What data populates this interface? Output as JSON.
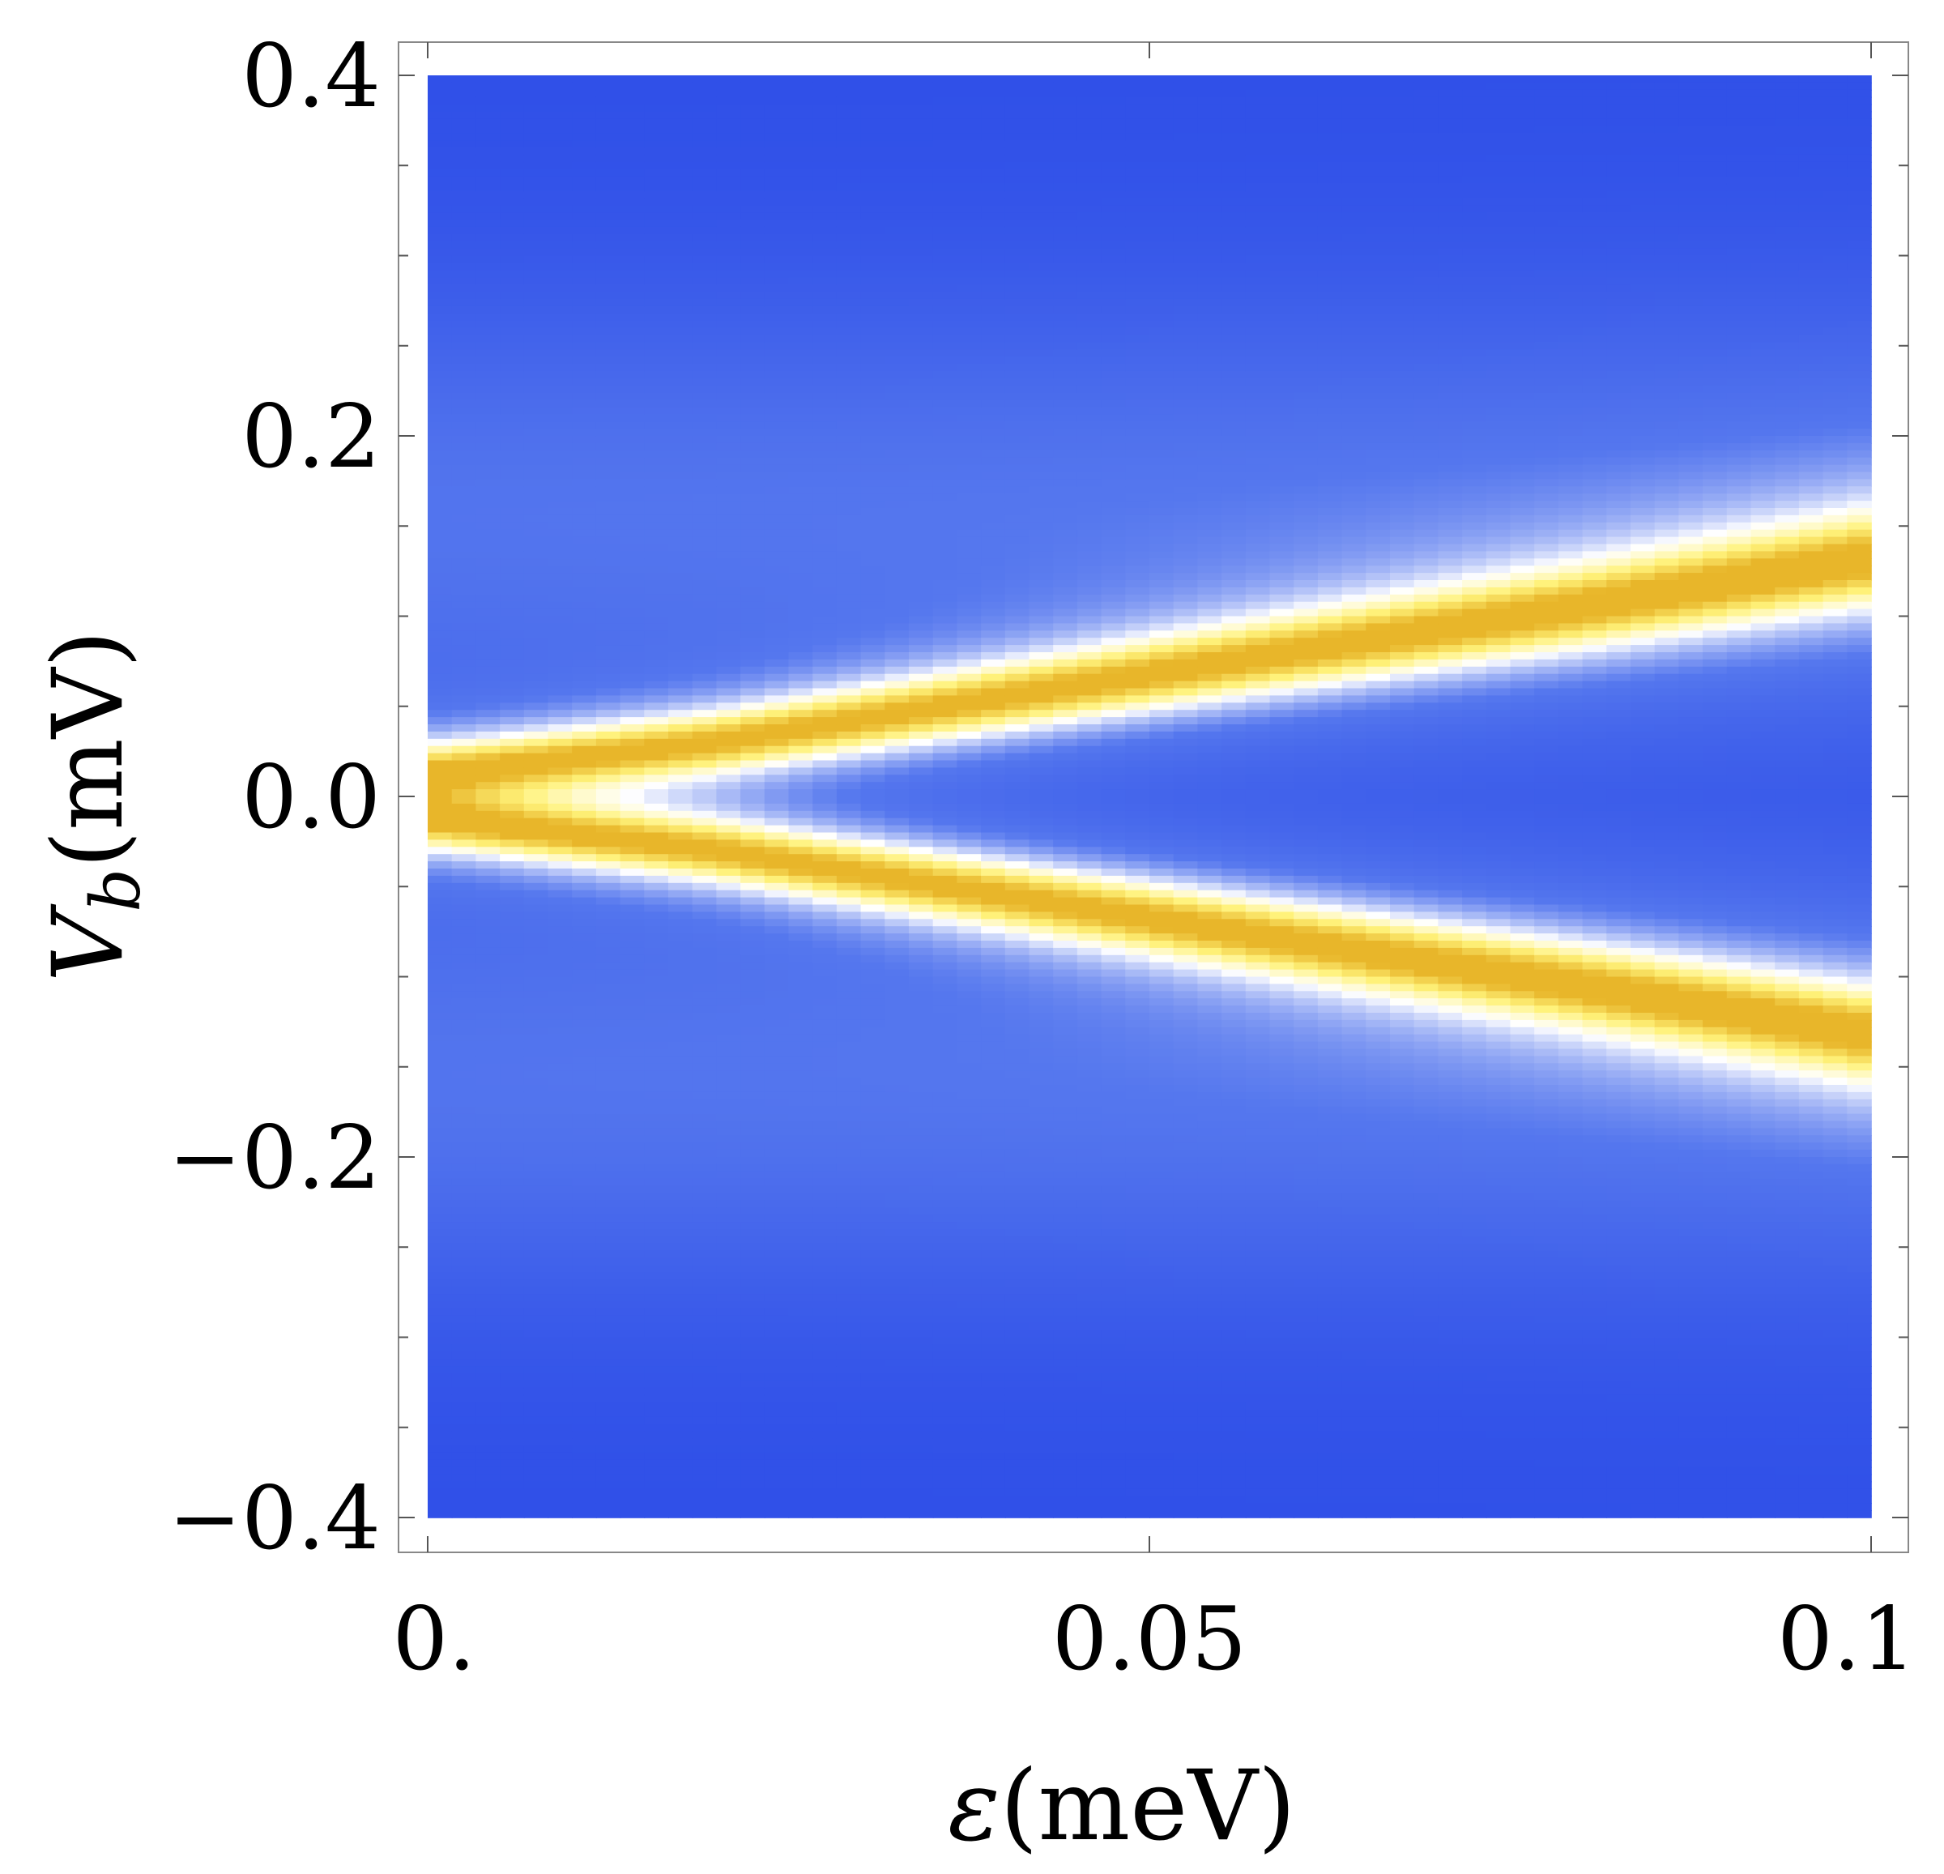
{
  "chart_data": {
    "type": "heatmap",
    "title": "",
    "xlabel": {
      "symbol": "ε",
      "unit": "(meV)"
    },
    "ylabel": {
      "symbol": "V",
      "subscript": "b",
      "unit": "(mV)"
    },
    "xlim": [
      0,
      0.1
    ],
    "ylim": [
      -0.4,
      0.4
    ],
    "x_ticks": [
      {
        "value": 0,
        "label": "0."
      },
      {
        "value": 0.05,
        "label": "0.05"
      },
      {
        "value": 0.1,
        "label": "0.1"
      }
    ],
    "y_ticks": [
      {
        "value": 0.4,
        "label": "0.4"
      },
      {
        "value": 0.2,
        "label": "0.2"
      },
      {
        "value": 0.0,
        "label": "0.0"
      },
      {
        "value": -0.2,
        "label": "−0.2"
      },
      {
        "value": -0.4,
        "label": "−0.4"
      }
    ],
    "y_minor_step": 0.05,
    "x_minor_step": 0.05,
    "grid": false,
    "legend": "none",
    "colormap": [
      "#2f4fe8",
      "#5577ee",
      "#ffffff",
      "#fff27a",
      "#e8b62a"
    ],
    "peak_branches": [
      {
        "name": "",
        "points": [
          [
            0,
            0.012
          ],
          [
            0.02,
            0.03
          ],
          [
            0.04,
            0.055
          ],
          [
            0.06,
            0.08
          ],
          [
            0.08,
            0.105
          ],
          [
            0.1,
            0.132
          ]
        ]
      },
      {
        "name": "",
        "points": [
          [
            0,
            -0.012
          ],
          [
            0.02,
            -0.03
          ],
          [
            0.04,
            -0.055
          ],
          [
            0.06,
            -0.08
          ],
          [
            0.08,
            -0.105
          ],
          [
            0.1,
            -0.132
          ]
        ]
      }
    ]
  }
}
